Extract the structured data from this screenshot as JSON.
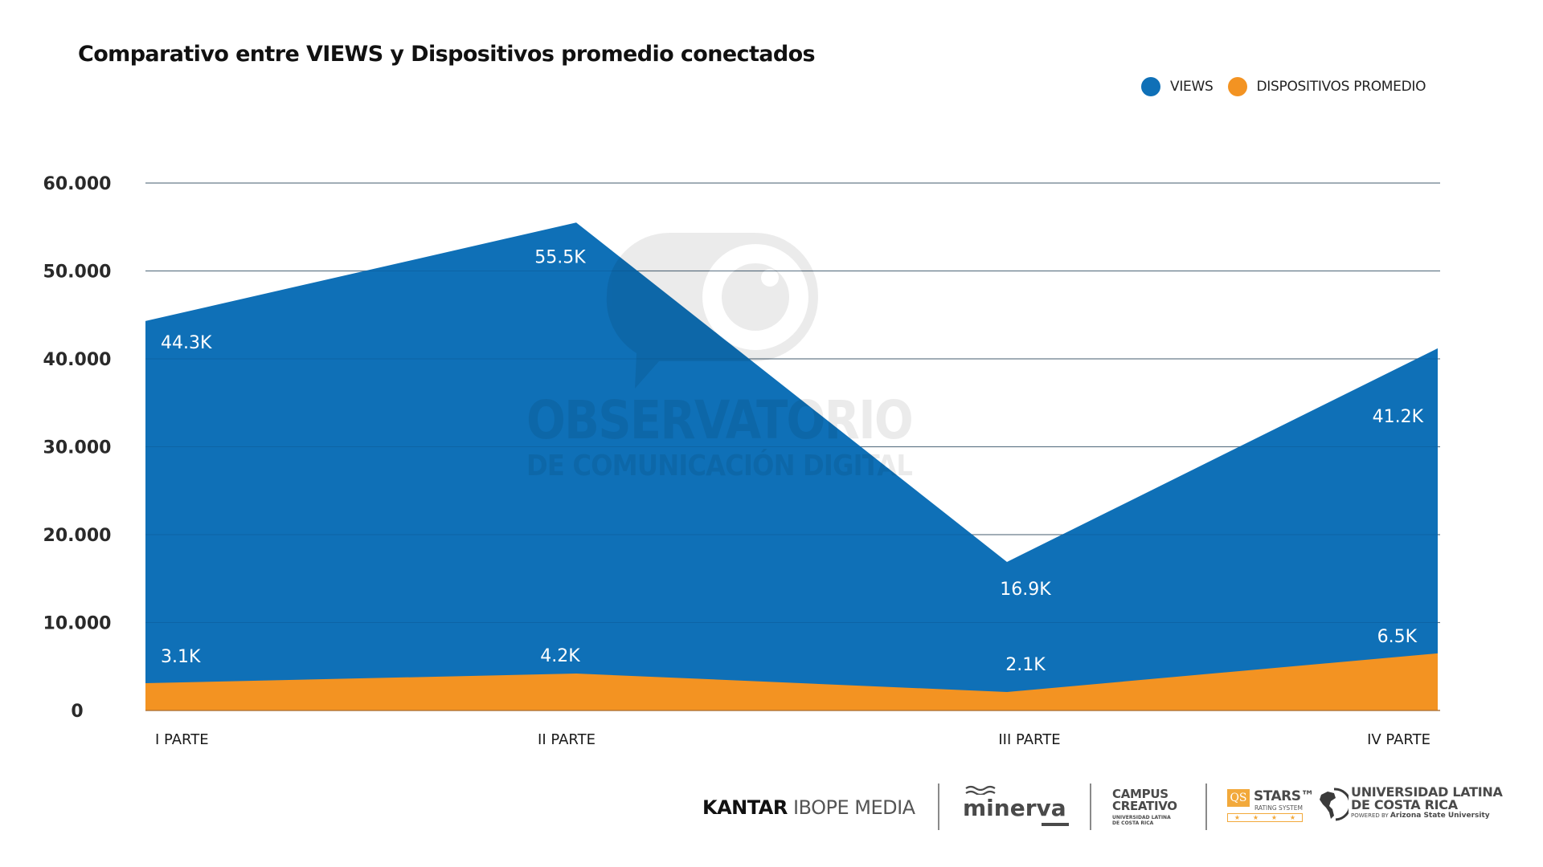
{
  "title": "Comparativo entre VIEWS y Dispositivos promedio conectados",
  "legend": [
    {
      "label": "VIEWS",
      "color": "#0f70b7"
    },
    {
      "label": "DISPOSITIVOS PROMEDIO",
      "color": "#f39322"
    }
  ],
  "chart_data": {
    "type": "area",
    "title": "Comparativo entre VIEWS y Dispositivos promedio conectados",
    "xlabel": "",
    "ylabel": "",
    "categories": [
      "I PARTE",
      "II PARTE",
      "III PARTE",
      "IV PARTE"
    ],
    "ylim": [
      0,
      60000
    ],
    "yticks": [
      0,
      10000,
      20000,
      30000,
      40000,
      50000,
      60000
    ],
    "ytick_labels": [
      "0",
      "10.000",
      "20.000",
      "30.000",
      "40.000",
      "50.000",
      "60.000"
    ],
    "grid": true,
    "legend_position": "top-right",
    "series": [
      {
        "name": "VIEWS",
        "color": "#0f70b7",
        "values": [
          44300,
          55500,
          16900,
          41200
        ],
        "labels": [
          "44.3K",
          "55.5K",
          "16.9K",
          "41.2K"
        ]
      },
      {
        "name": "DISPOSITIVOS PROMEDIO",
        "color": "#f39322",
        "values": [
          3100,
          4200,
          2100,
          6500
        ],
        "labels": [
          "3.1K",
          "4.2K",
          "2.1K",
          "6.5K"
        ]
      }
    ]
  },
  "watermark": {
    "line1": "OBSERVATORIO",
    "line2": "DE COMUNICACIÓN DIGITAL"
  },
  "footer": {
    "kantar_bold": "KANTAR",
    "kantar_light": "IBOPE MEDIA",
    "minerva": "minerva",
    "campus_line1": "CAMPUS",
    "campus_line2": "CREATIVO",
    "campus_line3": "UNIVERSIDAD LATINA",
    "campus_line4": "DE COSTA RICA",
    "qs": "QS",
    "stars": "STARS™",
    "stars_sub": "RATING SYSTEM",
    "ulatina_line1": "UNIVERSIDAD LATINA",
    "ulatina_line2": "DE COSTA RICA",
    "ulatina_powered": "POWERED BY",
    "ulatina_asu": "Arizona State University"
  }
}
